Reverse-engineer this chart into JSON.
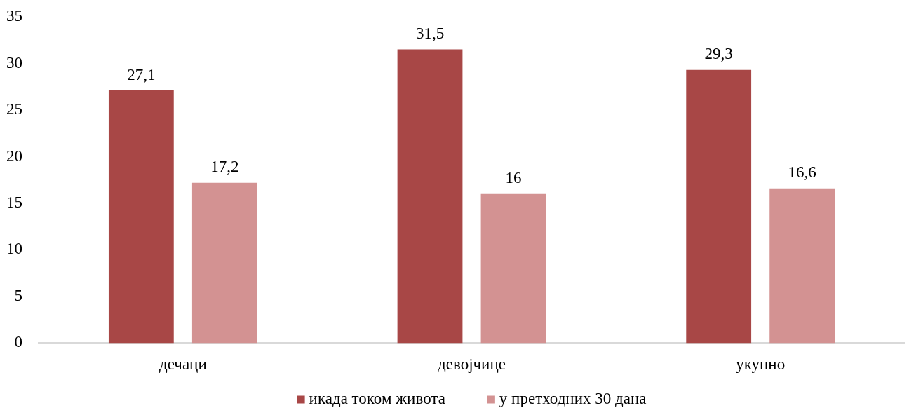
{
  "chart_data": {
    "type": "bar",
    "categories": [
      "дечаци",
      "девојчице",
      "укупно"
    ],
    "series": [
      {
        "name": "икада током живота",
        "color": "#a84746",
        "values": [
          27.1,
          31.5,
          29.3
        ],
        "value_labels": [
          "27,1",
          "31,5",
          "29,3"
        ]
      },
      {
        "name": "у претходних 30 дана",
        "color": "#d39292",
        "values": [
          17.2,
          16,
          16.6
        ],
        "value_labels": [
          "17,2",
          "16",
          "16,6"
        ]
      }
    ],
    "ylim": [
      0,
      35
    ],
    "yticks": [
      0,
      5,
      10,
      15,
      20,
      25,
      30,
      35
    ],
    "grid": false,
    "legend": "bottom"
  }
}
